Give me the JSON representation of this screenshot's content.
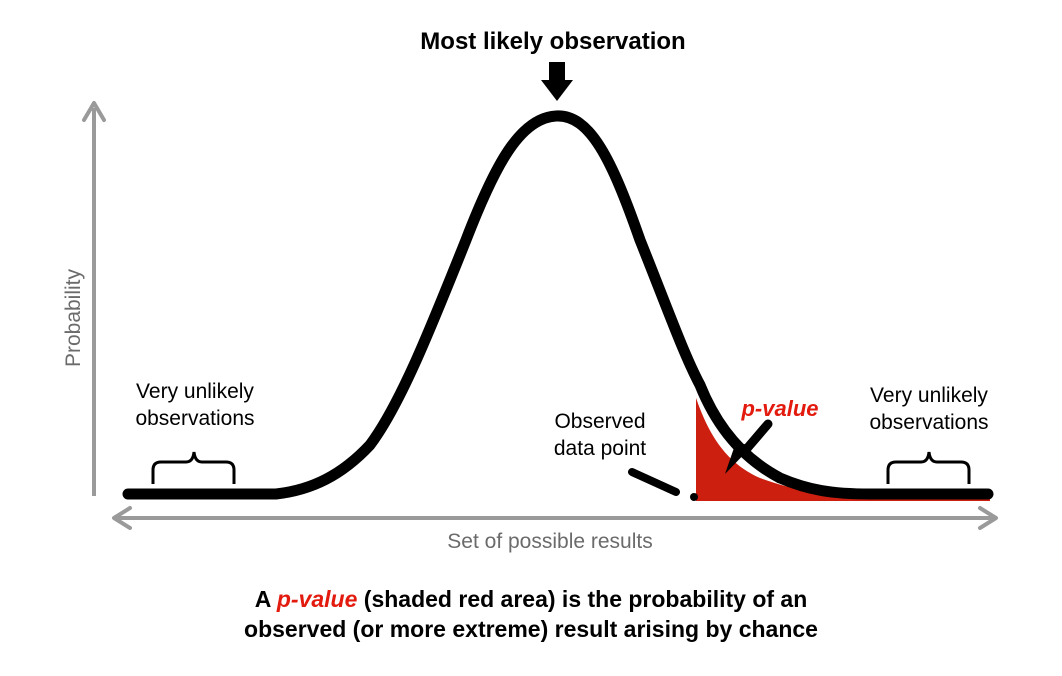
{
  "diagram": {
    "top_label": "Most likely observation",
    "y_axis_label": "Probability",
    "x_axis_label": "Set of possible results",
    "left_bracket_label": [
      "Very unlikely",
      "observations"
    ],
    "right_bracket_label": [
      "Very unlikely",
      "observations"
    ],
    "observed_label": [
      "Observed",
      "data point"
    ],
    "pvalue_label": "p-value"
  },
  "caption": {
    "prefix": "A ",
    "pvalue": "p-value",
    "line1_rest": " (shaded red area) is the probability of an",
    "line2": "observed (or more extreme) result arising by chance"
  },
  "colors": {
    "curve": "#000000",
    "axes": "#9a9a9a",
    "axis_label": "#6b6b6b",
    "pvalue_area": "#cc1f10",
    "pvalue_text": "#e31b0f",
    "text": "#000000"
  }
}
